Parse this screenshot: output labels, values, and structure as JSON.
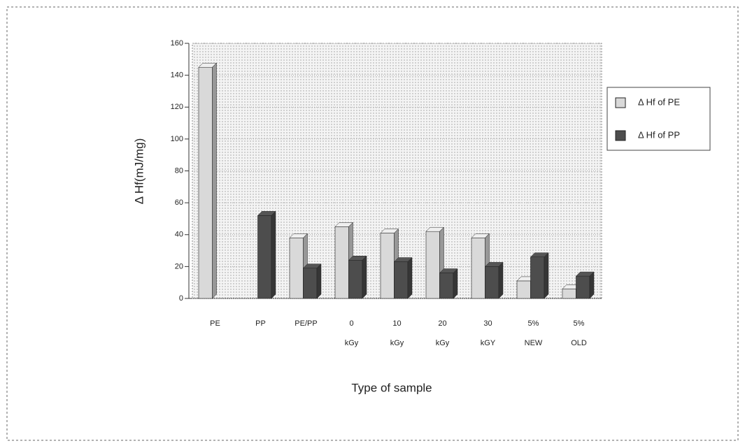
{
  "chart_data": {
    "type": "bar",
    "x_label": "Type of sample",
    "y_label": "Δ Hf(mJ/mg)",
    "categories": [
      [
        "PE"
      ],
      [
        "PP"
      ],
      [
        "PE/PP"
      ],
      [
        "0",
        "kGy"
      ],
      [
        "10",
        "kGy"
      ],
      [
        "20",
        "kGy"
      ],
      [
        "30",
        "kGY"
      ],
      [
        "5%",
        "NEW"
      ],
      [
        "5%",
        "OLD"
      ]
    ],
    "series": [
      {
        "name": "Δ Hf of PE",
        "color": "#d9d9d9",
        "values": [
          145,
          0,
          38,
          45,
          41,
          42,
          38,
          11,
          6
        ]
      },
      {
        "name": "Δ Hf of PP",
        "color": "#4d4d4d",
        "values": [
          0,
          52,
          19,
          24,
          23,
          16,
          20,
          26,
          14
        ]
      }
    ],
    "ylim": [
      0,
      160
    ],
    "yticks": [
      0,
      20,
      40,
      60,
      80,
      100,
      120,
      140,
      160
    ],
    "grid": true,
    "legend": "right"
  }
}
